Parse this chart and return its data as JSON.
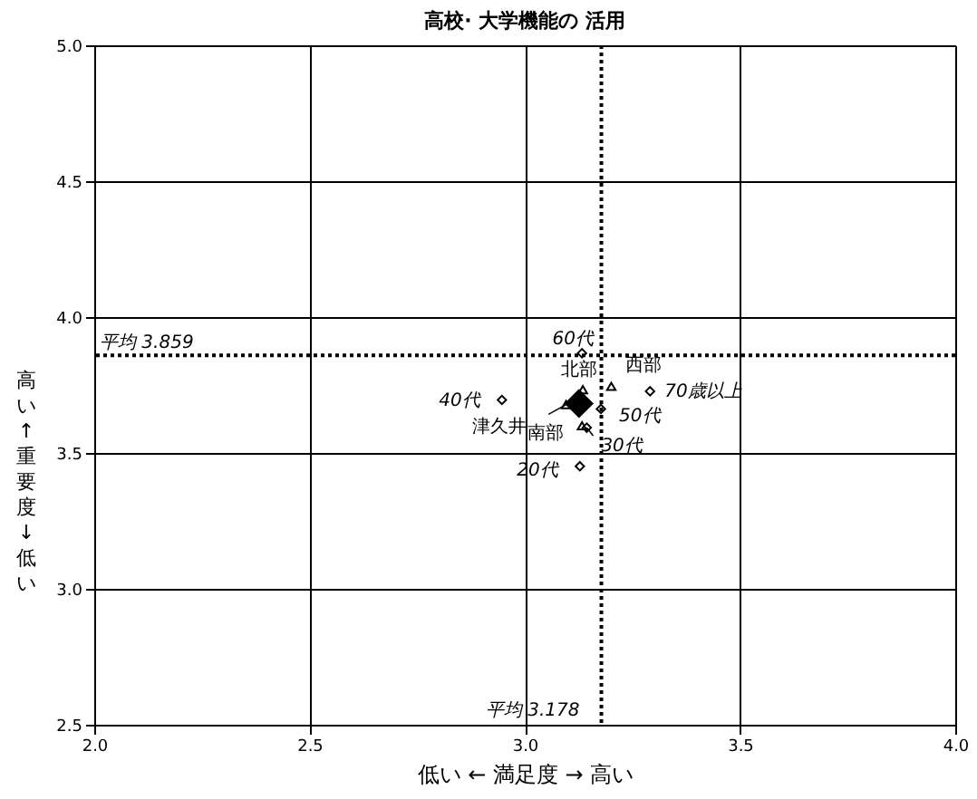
{
  "chart_data": {
    "type": "scatter",
    "title": "高校· 大学機能の 活用",
    "xlabel": "低い ← 満足度 → 高い",
    "ylabel": "高い ↑ 重要度 ↓ 低い",
    "xlim": [
      2.0,
      4.0
    ],
    "ylim": [
      2.5,
      5.0
    ],
    "xticks": [
      {
        "value": 2,
        "label": "2.0"
      },
      2.5,
      {
        "value": 3,
        "label": "3.0"
      },
      3.5,
      {
        "value": 4,
        "label": "4.0"
      }
    ],
    "yticks": [
      {
        "value": 2.5,
        "label": "2.5"
      },
      {
        "value": 3,
        "label": "3.0"
      },
      {
        "value": 3.5,
        "label": "3.5"
      },
      {
        "value": 4,
        "label": "4.0"
      },
      {
        "value": 4.5,
        "label": "4.5"
      },
      {
        "value": 5,
        "label": "5.0"
      }
    ],
    "grid": true,
    "legend": false,
    "series": [
      {
        "color": "#000000",
        "marker": "diamond",
        "x": [
          3.128,
          3.144,
          2.947,
          3.177,
          3.133,
          3.291
        ],
        "values": [
          3.451,
          3.593,
          3.695,
          3.662,
          3.867,
          3.727
        ]
      },
      {
        "color": "#000000",
        "marker": "triangle",
        "x": [
          3.135,
          3.201,
          3.096,
          3.133
        ],
        "values": [
          3.733,
          3.745,
          3.678,
          3.6
        ]
      },
      {
        "color": "#000000",
        "marker": "diamond",
        "x": [
          3.126
        ],
        "values": [
          3.682
        ]
      }
    ],
    "ref_lines": [
      {
        "axis": "x",
        "value": 3.178,
        "label": "平均 3.178",
        "line_style": "dotted"
      },
      {
        "axis": "y",
        "value": 3.859,
        "label": "平均 3.859",
        "line_style": "dotted"
      }
    ],
    "annotations": [
      {
        "text": "20代",
        "x": 3.128,
        "y": 3.451
      },
      {
        "text": "30代",
        "x": 3.144,
        "y": 3.593
      },
      {
        "text": "40代",
        "x": 2.947,
        "y": 3.695
      },
      {
        "text": "50代",
        "x": 3.177,
        "y": 3.662
      },
      {
        "text": "60代",
        "x": 3.133,
        "y": 3.867
      },
      {
        "text": "70歳以上",
        "x": 3.291,
        "y": 3.727
      },
      {
        "text": "北部",
        "x": 3.135,
        "y": 3.733
      },
      {
        "text": "西部",
        "x": 3.201,
        "y": 3.745
      },
      {
        "text": "津久井",
        "x": 3.096,
        "y": 3.678
      },
      {
        "text": "南部",
        "x": 3.133,
        "y": 3.6
      }
    ]
  }
}
